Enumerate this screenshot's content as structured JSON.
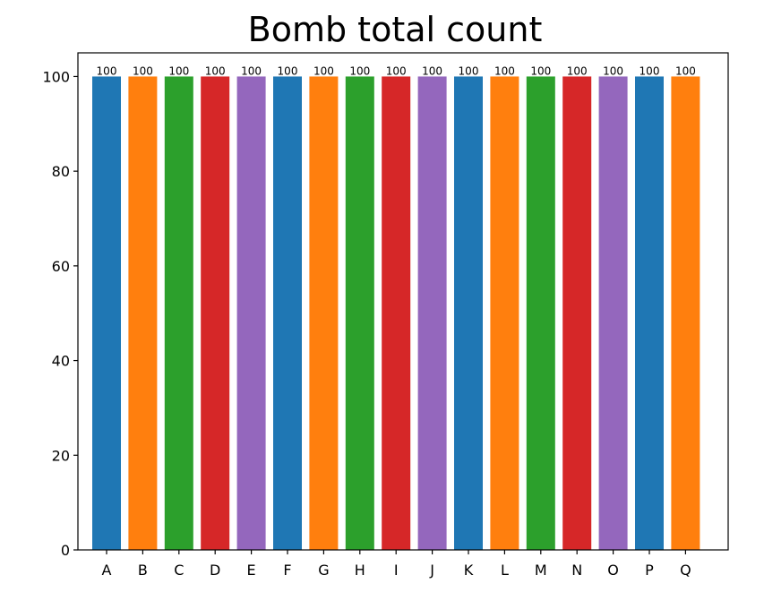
{
  "chart_data": {
    "type": "bar",
    "title": "Bomb total count",
    "xlabel": "",
    "ylabel": "",
    "categories": [
      "A",
      "B",
      "C",
      "D",
      "E",
      "F",
      "G",
      "H",
      "I",
      "J",
      "K",
      "L",
      "M",
      "N",
      "O",
      "P",
      "Q"
    ],
    "values": [
      100,
      100,
      100,
      100,
      100,
      100,
      100,
      100,
      100,
      100,
      100,
      100,
      100,
      100,
      100,
      100,
      100
    ],
    "data_labels": [
      "100",
      "100",
      "100",
      "100",
      "100",
      "100",
      "100",
      "100",
      "100",
      "100",
      "100",
      "100",
      "100",
      "100",
      "100",
      "100",
      "100"
    ],
    "colors": [
      "#1f77b4",
      "#ff7f0e",
      "#2ca02c",
      "#d62728",
      "#9467bd",
      "#1f77b4",
      "#ff7f0e",
      "#2ca02c",
      "#d62728",
      "#9467bd",
      "#1f77b4",
      "#ff7f0e",
      "#2ca02c",
      "#d62728",
      "#9467bd",
      "#1f77b4",
      "#ff7f0e"
    ],
    "yticks": [
      0,
      20,
      40,
      60,
      80,
      100
    ],
    "ytick_labels": [
      "0",
      "20",
      "40",
      "60",
      "80",
      "100"
    ],
    "ylim": [
      0,
      105
    ],
    "grid": false,
    "legend": "none"
  }
}
